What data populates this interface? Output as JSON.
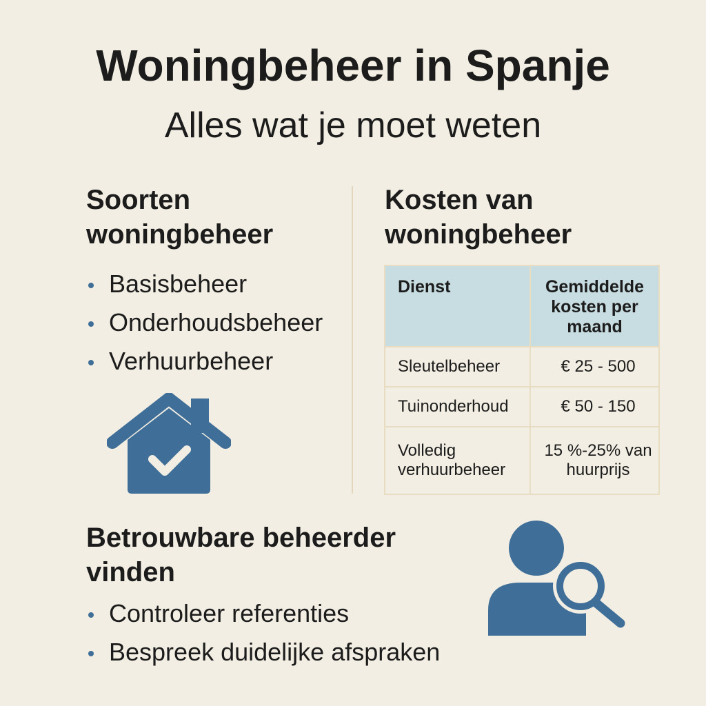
{
  "header": {
    "title": "Woningbeheer in Spanje",
    "subtitle": "Alles wat je moet weten"
  },
  "types": {
    "heading": "Soorten woningbeheer",
    "items": [
      "Basisbeheer",
      "Onderhoudsbeheer",
      "Verhuurbeheer"
    ]
  },
  "costs": {
    "heading": "Kosten van woningbeheer",
    "table": {
      "columns": [
        "Dienst",
        "Gemiddelde kosten per maand"
      ],
      "rows": [
        [
          "Sleutelbeheer",
          "€ 25 - 500"
        ],
        [
          "Tuinonderhoud",
          "€ 50 - 150"
        ],
        [
          "Volledig verhuurbeheer",
          "15 %-25% van huurprijs"
        ]
      ]
    }
  },
  "finding": {
    "heading": "Betrouwbare beheerder vinden",
    "items": [
      "Controleer referenties",
      "Bespreek duidelijke afspraken"
    ]
  }
}
